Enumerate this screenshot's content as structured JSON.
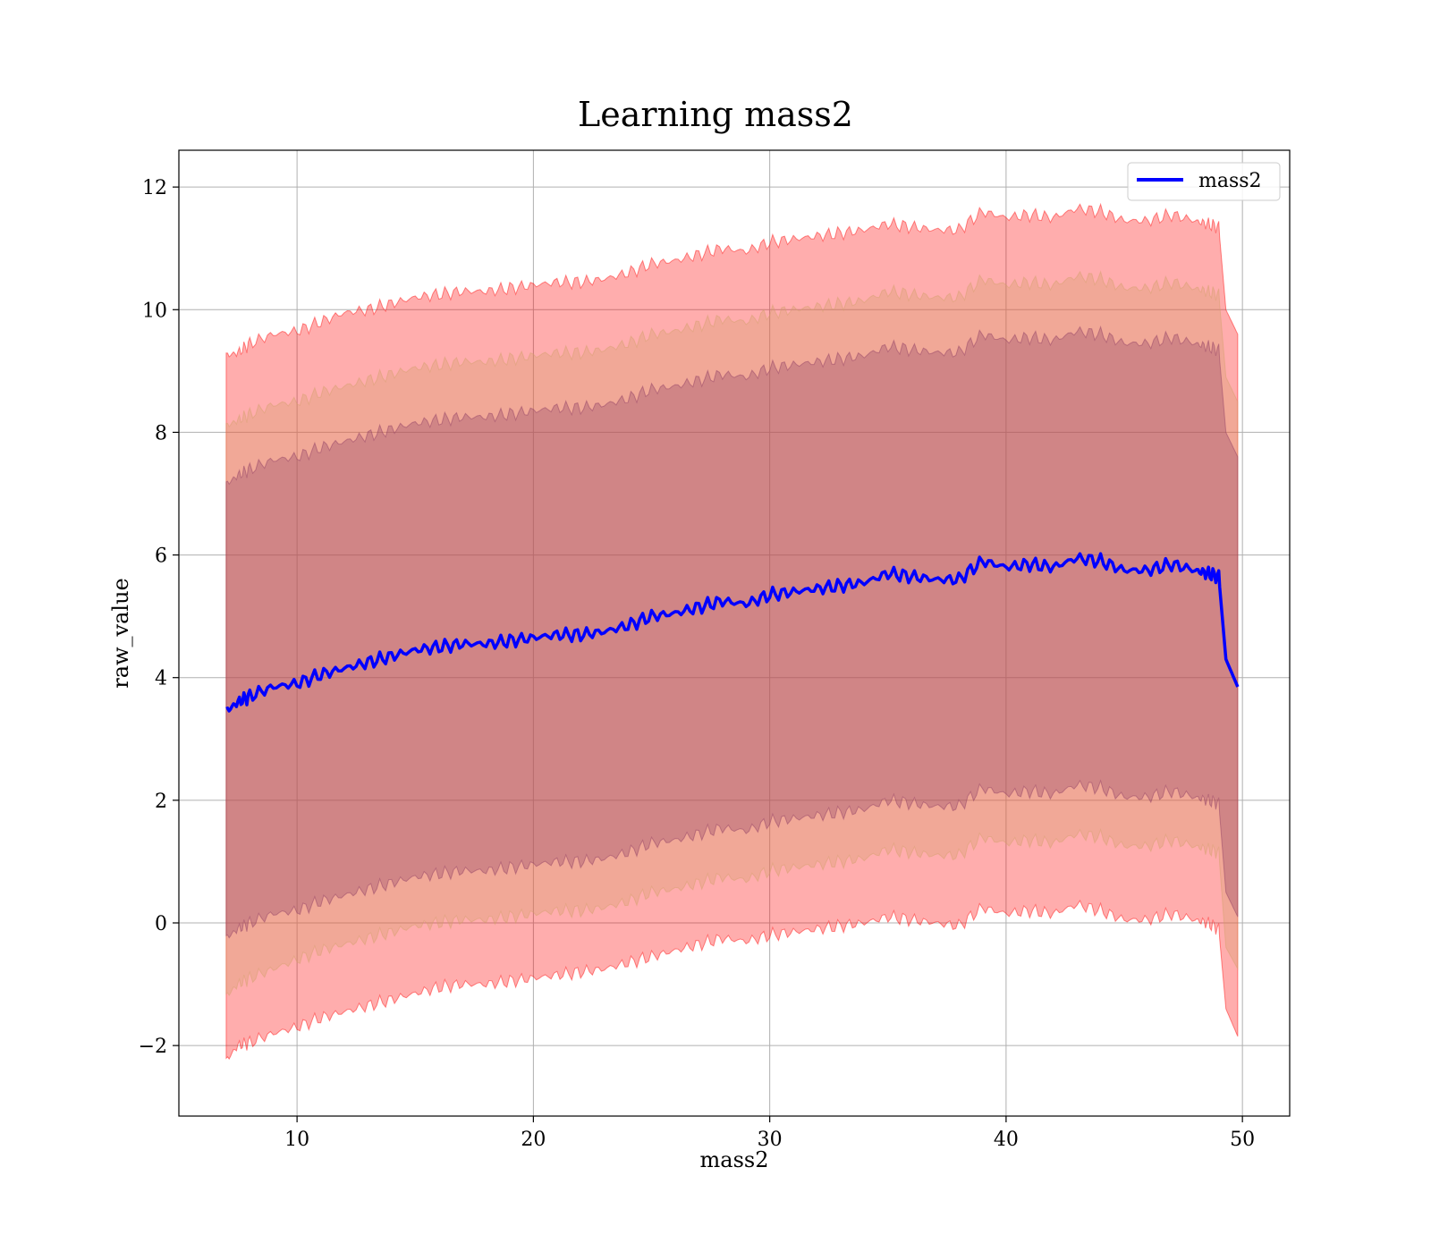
{
  "chart_data": {
    "type": "area",
    "title": "Learning mass2",
    "xlabel": "mass2",
    "ylabel": "raw_value",
    "xlim": [
      5,
      52
    ],
    "ylim": [
      -3.15,
      12.6
    ],
    "x_ticks": [
      10,
      20,
      30,
      40,
      50
    ],
    "y_ticks": [
      -2,
      0,
      2,
      4,
      6,
      8,
      10,
      12
    ],
    "grid": true,
    "legend": {
      "placement": "upper right",
      "entries": [
        "mass2"
      ]
    },
    "x": [
      7.0,
      7.5,
      8.0,
      9.0,
      10.0,
      11.0,
      12.0,
      13.0,
      14.0,
      15.0,
      16.0,
      17.0,
      18.0,
      19.0,
      20.0,
      21.0,
      22.0,
      23.0,
      24.0,
      25.0,
      26.0,
      27.0,
      28.0,
      29.0,
      30.0,
      31.0,
      32.0,
      33.0,
      34.0,
      35.0,
      36.0,
      37.0,
      38.0,
      39.0,
      40.0,
      41.0,
      42.0,
      43.0,
      44.0,
      45.0,
      46.0,
      47.0,
      48.0,
      48.5,
      49.0,
      49.3,
      49.8
    ],
    "series": [
      {
        "name": "mass2",
        "color": "#0000ff",
        "values": [
          3.45,
          3.6,
          3.7,
          3.85,
          3.9,
          4.05,
          4.15,
          4.25,
          4.35,
          4.45,
          4.5,
          4.55,
          4.55,
          4.6,
          4.65,
          4.7,
          4.7,
          4.75,
          4.85,
          5.0,
          5.05,
          5.15,
          5.25,
          5.2,
          5.35,
          5.4,
          5.45,
          5.5,
          5.55,
          5.7,
          5.65,
          5.6,
          5.6,
          5.9,
          5.8,
          5.85,
          5.8,
          5.95,
          5.9,
          5.75,
          5.75,
          5.85,
          5.75,
          5.7,
          5.65,
          4.3,
          3.85
        ]
      }
    ],
    "bands": [
      {
        "level": "outer",
        "color": "#ff0000",
        "lower": [
          -2.25,
          -2.0,
          -1.95,
          -1.8,
          -1.7,
          -1.55,
          -1.45,
          -1.35,
          -1.25,
          -1.15,
          -1.05,
          -1.0,
          -1.0,
          -0.95,
          -0.9,
          -0.85,
          -0.8,
          -0.75,
          -0.65,
          -0.55,
          -0.45,
          -0.35,
          -0.25,
          -0.3,
          -0.2,
          -0.15,
          -0.1,
          -0.05,
          0.0,
          0.1,
          0.05,
          0.0,
          -0.05,
          0.25,
          0.15,
          0.2,
          0.15,
          0.3,
          0.2,
          0.05,
          0.05,
          0.15,
          0.05,
          0.0,
          -0.1,
          -1.4,
          -1.85
        ],
        "upper": [
          9.25,
          9.3,
          9.45,
          9.6,
          9.65,
          9.8,
          9.95,
          10.0,
          10.1,
          10.2,
          10.25,
          10.3,
          10.3,
          10.35,
          10.4,
          10.45,
          10.45,
          10.5,
          10.6,
          10.75,
          10.8,
          10.9,
          11.0,
          10.95,
          11.1,
          11.15,
          11.2,
          11.25,
          11.3,
          11.4,
          11.35,
          11.3,
          11.3,
          11.6,
          11.5,
          11.55,
          11.5,
          11.65,
          11.6,
          11.45,
          11.45,
          11.55,
          11.45,
          11.4,
          11.35,
          10.0,
          9.6
        ]
      },
      {
        "level": "middle",
        "color": "#d2a06a",
        "lower": [
          -1.2,
          -1.0,
          -0.9,
          -0.75,
          -0.6,
          -0.45,
          -0.35,
          -0.25,
          -0.15,
          -0.05,
          0.0,
          0.05,
          0.05,
          0.1,
          0.15,
          0.2,
          0.2,
          0.25,
          0.35,
          0.5,
          0.55,
          0.65,
          0.75,
          0.7,
          0.85,
          0.9,
          0.95,
          1.0,
          1.05,
          1.2,
          1.15,
          1.1,
          1.1,
          1.4,
          1.3,
          1.35,
          1.3,
          1.45,
          1.4,
          1.25,
          1.25,
          1.35,
          1.25,
          1.2,
          1.15,
          -0.4,
          -0.75
        ],
        "upper": [
          8.1,
          8.2,
          8.3,
          8.45,
          8.5,
          8.65,
          8.75,
          8.85,
          8.95,
          9.05,
          9.1,
          9.15,
          9.15,
          9.2,
          9.25,
          9.3,
          9.3,
          9.35,
          9.45,
          9.6,
          9.65,
          9.75,
          9.85,
          9.8,
          9.95,
          10.0,
          10.05,
          10.1,
          10.15,
          10.3,
          10.25,
          10.2,
          10.2,
          10.5,
          10.4,
          10.45,
          10.4,
          10.55,
          10.5,
          10.35,
          10.35,
          10.45,
          10.35,
          10.3,
          10.25,
          8.9,
          8.5
        ]
      },
      {
        "level": "inner",
        "color": "#8b3a62",
        "lower": [
          -0.25,
          -0.1,
          0.0,
          0.15,
          0.2,
          0.35,
          0.45,
          0.55,
          0.65,
          0.75,
          0.8,
          0.85,
          0.85,
          0.9,
          0.95,
          1.0,
          1.0,
          1.05,
          1.15,
          1.3,
          1.35,
          1.45,
          1.55,
          1.5,
          1.65,
          1.7,
          1.75,
          1.8,
          1.85,
          2.0,
          1.95,
          1.9,
          1.9,
          2.2,
          2.1,
          2.15,
          2.1,
          2.25,
          2.2,
          2.05,
          2.05,
          2.15,
          2.05,
          2.0,
          1.95,
          0.5,
          0.1
        ],
        "upper": [
          7.15,
          7.3,
          7.4,
          7.55,
          7.6,
          7.75,
          7.85,
          7.95,
          8.05,
          8.15,
          8.2,
          8.25,
          8.25,
          8.3,
          8.35,
          8.4,
          8.4,
          8.45,
          8.55,
          8.7,
          8.75,
          8.85,
          8.95,
          8.9,
          9.05,
          9.1,
          9.15,
          9.2,
          9.25,
          9.4,
          9.35,
          9.3,
          9.3,
          9.6,
          9.5,
          9.55,
          9.5,
          9.65,
          9.6,
          9.45,
          9.45,
          9.55,
          9.45,
          9.4,
          9.35,
          8.0,
          7.6
        ]
      }
    ]
  }
}
